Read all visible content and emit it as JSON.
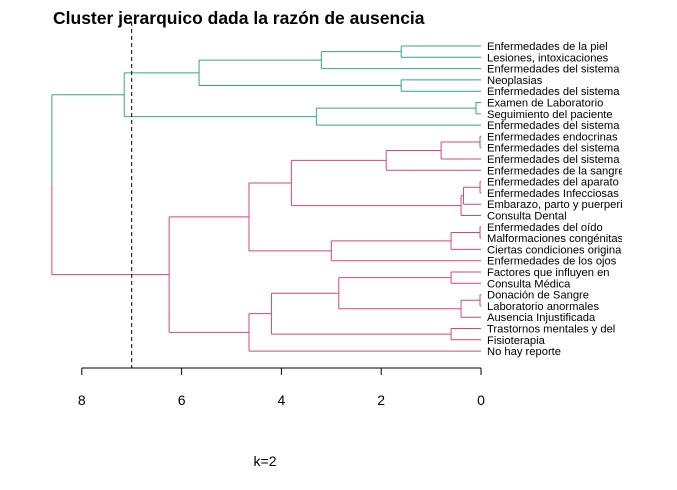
{
  "chart_data": {
    "type": "dendrogram",
    "title": "Cluster jerarquico dada la razón de ausencia",
    "xlabel": "k=2",
    "xlim": [
      8,
      0
    ],
    "x_ticks": [
      "8",
      "6",
      "4",
      "2",
      "0"
    ],
    "x_tick_values": [
      8,
      6,
      4,
      2,
      0
    ],
    "cut_height": 7.0,
    "k": 2,
    "cluster_colors": [
      "#35a785",
      "#d2487a"
    ],
    "leaves": [
      "Enfermedades de la piel",
      "Lesiones, intoxicaciones",
      "Enfermedades del sistema",
      "Neoplasias",
      "Enfermedades del sistema",
      "Examen de Laboratorio",
      "Seguimiento del paciente",
      "Enfermedades del sistema",
      "Enfermedades endocrinas",
      "Enfermedades del sistema",
      "Enfermedades del sistema",
      "Enfermedades de la sangre",
      "Enfermedades del aparato",
      "Enfermedades Infecciosas",
      "Embarazo, parto y puerperio",
      "Consulta Dental",
      "Enfermedades del oído",
      "Malformaciones congénitas",
      "Ciertas condiciones originadas",
      "Enfermedades de los ojos",
      "Factores que influyen en",
      "Consulta Médica",
      "Donación de Sangre",
      "Laboratorio anormales",
      "Ausencia Injustificada",
      "Trastornos mentales y del",
      "Fisioterapia",
      "No hay reporte"
    ],
    "leaf_clusters": [
      1,
      1,
      1,
      1,
      1,
      1,
      1,
      1,
      2,
      2,
      2,
      2,
      2,
      2,
      2,
      2,
      2,
      2,
      2,
      2,
      2,
      2,
      2,
      2,
      2,
      2,
      2,
      2
    ],
    "merges": [
      {
        "a": "L0",
        "b": "L1",
        "height": 1.6,
        "cluster": 1
      },
      {
        "a": "N0",
        "b": "L2",
        "height": 3.2,
        "cluster": 1
      },
      {
        "a": "L3",
        "b": "L4",
        "height": 1.6,
        "cluster": 1
      },
      {
        "a": "N1",
        "b": "N2",
        "height": 5.65,
        "cluster": 1
      },
      {
        "a": "L5",
        "b": "L6",
        "height": 0.1,
        "cluster": 1
      },
      {
        "a": "N4",
        "b": "L7",
        "height": 3.3,
        "cluster": 1
      },
      {
        "a": "N3",
        "b": "N5",
        "height": 7.15,
        "cluster": 1
      },
      {
        "a": "L8",
        "b": "L9",
        "height": 0.02,
        "cluster": 2
      },
      {
        "a": "N7",
        "b": "L10",
        "height": 0.8,
        "cluster": 2
      },
      {
        "a": "N8",
        "b": "L11",
        "height": 1.9,
        "cluster": 2
      },
      {
        "a": "L12",
        "b": "L13",
        "height": 0.02,
        "cluster": 2
      },
      {
        "a": "N10",
        "b": "L14",
        "height": 0.35,
        "cluster": 2
      },
      {
        "a": "N11",
        "b": "L15",
        "height": 0.4,
        "cluster": 2
      },
      {
        "a": "N9",
        "b": "N12",
        "height": 3.8,
        "cluster": 2
      },
      {
        "a": "L16",
        "b": "L17",
        "height": 0.02,
        "cluster": 2
      },
      {
        "a": "N14",
        "b": "L18",
        "height": 0.6,
        "cluster": 2
      },
      {
        "a": "N15",
        "b": "L19",
        "height": 3.0,
        "cluster": 2
      },
      {
        "a": "N13",
        "b": "N16",
        "height": 4.65,
        "cluster": 2
      },
      {
        "a": "L20",
        "b": "L21",
        "height": 0.6,
        "cluster": 2
      },
      {
        "a": "L22",
        "b": "L23",
        "height": 0.02,
        "cluster": 2
      },
      {
        "a": "N19",
        "b": "L24",
        "height": 0.4,
        "cluster": 2
      },
      {
        "a": "N18",
        "b": "N20",
        "height": 2.85,
        "cluster": 2
      },
      {
        "a": "L25",
        "b": "L26",
        "height": 0.6,
        "cluster": 2
      },
      {
        "a": "N21",
        "b": "N22",
        "height": 4.2,
        "cluster": 2
      },
      {
        "a": "N23",
        "b": "L27",
        "height": 4.65,
        "cluster": 2
      },
      {
        "a": "N17",
        "b": "N24",
        "height": 6.25,
        "cluster": 2
      },
      {
        "a": "N6",
        "b": "N25",
        "height": 8.6,
        "cluster": "root"
      }
    ]
  }
}
